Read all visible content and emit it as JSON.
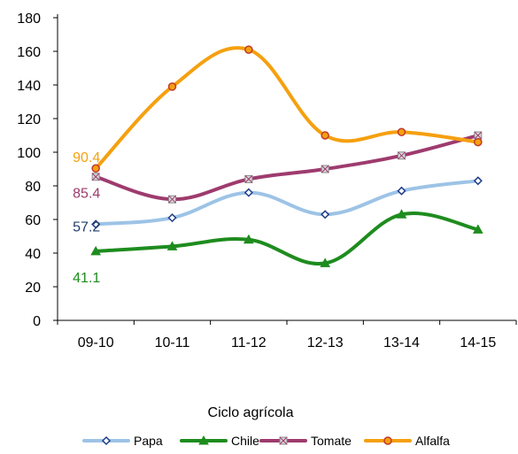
{
  "chart_data": {
    "type": "line",
    "categories": [
      "09-10",
      "10-11",
      "11-12",
      "12-13",
      "13-14",
      "14-15"
    ],
    "xlabel": "Ciclo agrícola",
    "ylabel": "",
    "ylim": [
      0,
      180
    ],
    "yticks": [
      0,
      20,
      40,
      60,
      80,
      100,
      120,
      140,
      160,
      180
    ],
    "grid": false,
    "legend_position": "bottom",
    "smooth": true,
    "series": [
      {
        "name": "Papa",
        "color": "#9DC3E6",
        "marker": "diamond",
        "marker_color": "#1F3D8A",
        "values": [
          57.2,
          61,
          76,
          63,
          77,
          83
        ],
        "label_first": "57.2",
        "label_color": "#1F3D6E"
      },
      {
        "name": "Chile",
        "color": "#1E8C1E",
        "marker": "triangle",
        "marker_color": "#1E8C1E",
        "values": [
          41.1,
          44,
          48,
          34,
          63,
          54
        ],
        "label_first": "41.1",
        "label_color": "#1E8C1E"
      },
      {
        "name": "Tomate",
        "color": "#9E3B6E",
        "marker": "square-x",
        "marker_color": "#8A8A8A",
        "values": [
          85.4,
          72,
          84,
          90,
          98,
          110
        ],
        "label_first": "85.4",
        "label_color": "#9E3B6E"
      },
      {
        "name": "Alfalfa",
        "color": "#F5A00F",
        "marker": "circle",
        "marker_color": "#C0392B",
        "values": [
          90.4,
          139,
          161,
          110,
          112,
          106
        ],
        "label_first": "90.4",
        "label_color": "#F5A00F"
      }
    ]
  }
}
